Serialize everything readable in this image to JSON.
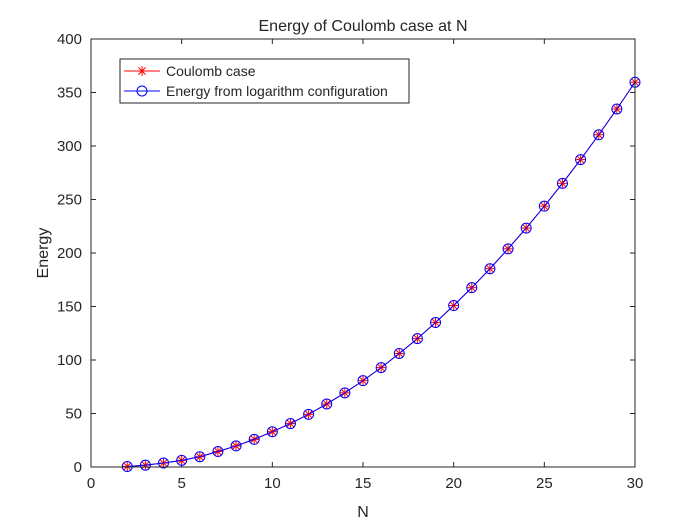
{
  "chart_data": {
    "type": "line",
    "title": "Energy of Coulomb case at N",
    "xlabel": "N",
    "ylabel": "Energy",
    "xlim": [
      0,
      30
    ],
    "ylim": [
      0,
      400
    ],
    "xticks": [
      0,
      5,
      10,
      15,
      20,
      25,
      30
    ],
    "yticks": [
      0,
      50,
      100,
      150,
      200,
      250,
      300,
      350,
      400
    ],
    "grid": false,
    "legend_position": "top-left",
    "x": [
      2,
      3,
      4,
      5,
      6,
      7,
      8,
      9,
      10,
      11,
      12,
      13,
      14,
      15,
      16,
      17,
      18,
      19,
      20,
      21,
      22,
      23,
      24,
      25,
      26,
      27,
      28,
      29,
      30
    ],
    "series": [
      {
        "name": "Coulomb case",
        "color": "#ff0000",
        "marker": "asterisk",
        "line": true,
        "values": [
          0.5,
          1.7,
          3.7,
          6.2,
          9.6,
          14.5,
          19.7,
          25.8,
          33.0,
          40.6,
          49.2,
          58.9,
          69.3,
          80.7,
          92.9,
          106.1,
          120.0,
          135.1,
          150.9,
          167.6,
          185.3,
          203.9,
          223.3,
          243.8,
          265.1,
          287.3,
          310.5,
          334.6,
          359.6
        ]
      },
      {
        "name": "Energy from logarithm configuration",
        "color": "#0000ff",
        "marker": "circle",
        "line": true,
        "values": [
          0.5,
          1.7,
          3.7,
          6.2,
          9.6,
          14.5,
          19.7,
          25.8,
          33.0,
          40.6,
          49.2,
          58.9,
          69.3,
          80.7,
          92.9,
          106.1,
          120.0,
          135.1,
          150.9,
          167.6,
          185.3,
          203.9,
          223.3,
          243.8,
          265.1,
          287.3,
          310.5,
          334.6,
          359.6
        ]
      }
    ]
  }
}
